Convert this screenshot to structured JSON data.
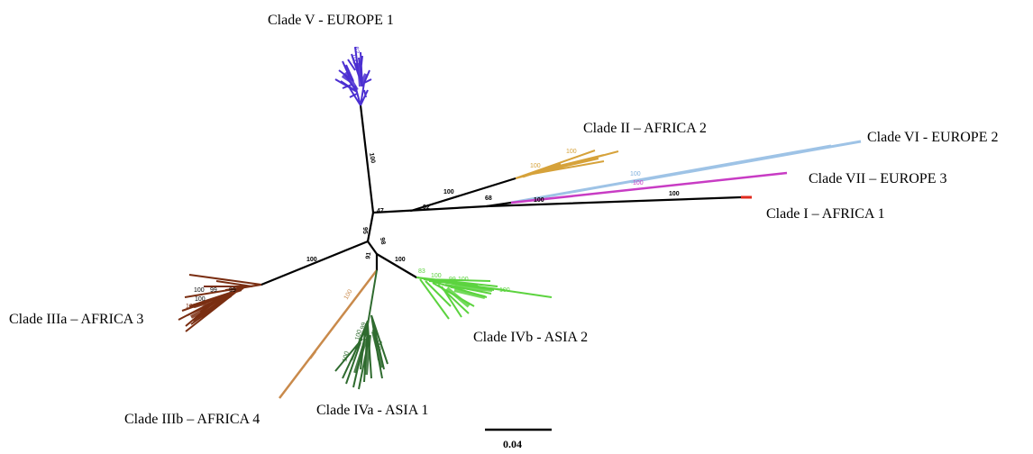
{
  "colors": {
    "clade_v": "#4b2fd1",
    "clade_ii": "#d6a23a",
    "clade_vi": "#9ec3e6",
    "clade_vii": "#c83cc4",
    "clade_i": "#e02a1e",
    "clade_iiia": "#7a2e12",
    "clade_iiib": "#c98a4b",
    "clade_iva": "#2f6b2f",
    "clade_ivb": "#5cd33f",
    "trunk": "#000000"
  },
  "labels": {
    "clade_v": "Clade V - EUROPE 1",
    "clade_ii": "Clade II – AFRICA 2",
    "clade_vi": "Clade VI - EUROPE 2",
    "clade_vii": "Clade VII – EUROPE 3",
    "clade_i": "Clade I – AFRICA 1",
    "clade_iiia": "Clade IIIa – AFRICA 3",
    "clade_iiib": "Clade IIIb – AFRICA 4",
    "clade_iva": "Clade IVa - ASIA 1",
    "clade_ivb": "Clade IVb - ASIA 2"
  },
  "bootstrap": {
    "trunk_v": "100",
    "node_47": "47",
    "node_95": "95",
    "node_98": "98",
    "trunk_iiia": "100",
    "trunk_ii": "100",
    "node_92": "92",
    "node_68": "68",
    "trunk_i_mid": "100",
    "trunk_i_end": "100",
    "trunk_iv": "91",
    "trunk_ivb": "100",
    "ii_a": "100",
    "ii_b": "100",
    "vi": "100",
    "vii": "100",
    "v_a": "62",
    "v_b": "100",
    "iiib": "100",
    "iiia_1": "100",
    "iiia_2": "99",
    "iiia_3": "100",
    "iiia_4": "99",
    "iiia_5": "100",
    "iiia_6": "99",
    "ivb_1": "83",
    "ivb_2": "100",
    "ivb_3": "99",
    "ivb_4": "100",
    "ivb_5": "100",
    "iva_1": "100",
    "iva_2": "100",
    "iva_3": "99",
    "iva_4": "100"
  },
  "scale": {
    "label": "0.04"
  }
}
